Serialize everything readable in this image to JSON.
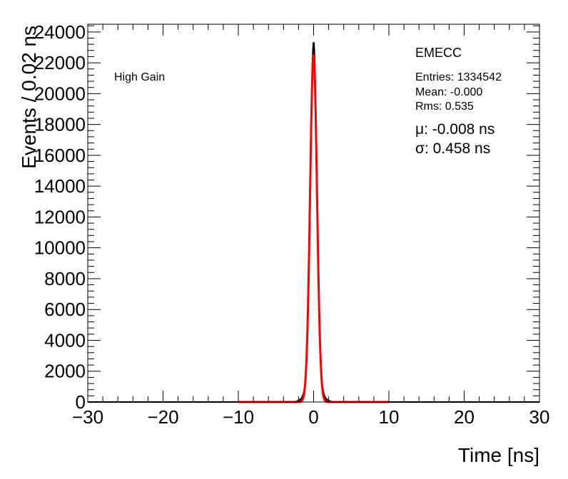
{
  "chart_data": {
    "type": "histogram",
    "xlabel": "Time [ns]",
    "ylabel": "Events / 0.02 ns",
    "xlim": [
      -30,
      30
    ],
    "ylim": [
      0,
      24500
    ],
    "x_major_ticks": [
      -30,
      -20,
      -10,
      0,
      10,
      20,
      30
    ],
    "y_major_ticks": [
      0,
      2000,
      4000,
      6000,
      8000,
      10000,
      12000,
      14000,
      16000,
      18000,
      20000,
      22000,
      24000
    ],
    "grid": false,
    "legend": "none",
    "annotations": {
      "label": "High Gain",
      "title": "EMECC",
      "entries": "Entries: 1334542",
      "mean": "Mean: -0.000",
      "rms": "Rms: 0.535",
      "mu": "μ: -0.008 ns",
      "sigma": "σ: 0.458 ns"
    },
    "series": [
      {
        "kind": "histogram",
        "color": "#000000",
        "peak": 23300,
        "center": -0.0,
        "core_sigma": 0.43,
        "tail_sigma": 0.85,
        "tail_fraction": 0.055
      },
      {
        "kind": "gaussian_fit",
        "color": "#ff0000",
        "amplitude": 22500,
        "mu": -0.008,
        "sigma": 0.458,
        "range": [
          -10,
          10
        ]
      }
    ]
  }
}
